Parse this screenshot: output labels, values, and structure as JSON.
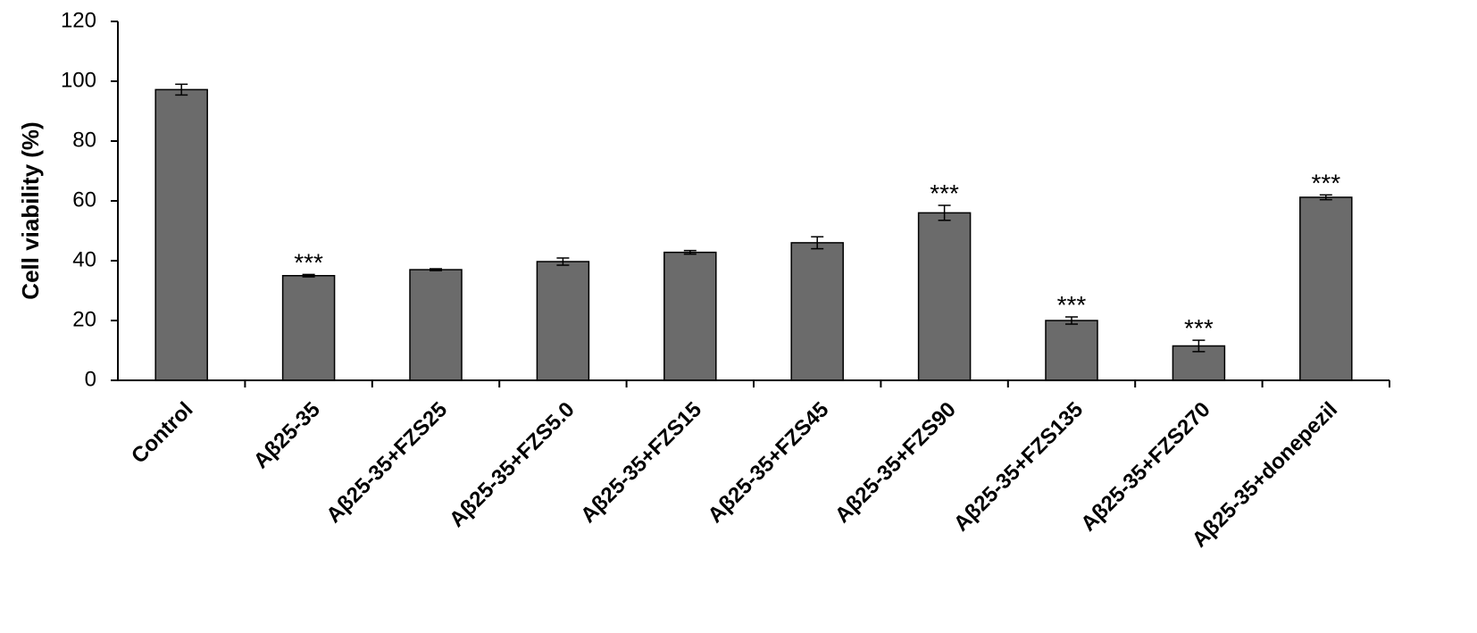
{
  "chart_data": {
    "type": "bar",
    "title": "",
    "xlabel": "",
    "ylabel": "Cell viability (%)",
    "ylim": [
      0,
      120
    ],
    "yticks": [
      0,
      20,
      40,
      60,
      80,
      100,
      120
    ],
    "grid": false,
    "legend": "none",
    "bar_color": "#6b6b6b",
    "categories": [
      "Control",
      "Aβ25-35",
      "Aβ25-35+FZS25",
      "Aβ25-35+FZS5.0",
      "Aβ25-35+FZS15",
      "Aβ25-35+FZS45",
      "Aβ25-35+FZS90",
      "Aβ25-35+FZS135",
      "Aβ25-35+FZS270",
      "Aβ25-35+donepezil"
    ],
    "values": [
      97.2,
      35.0,
      37.0,
      39.7,
      42.8,
      46.0,
      56.0,
      20.0,
      11.5,
      61.2
    ],
    "errors": [
      1.8,
      0.4,
      0.3,
      1.2,
      0.6,
      2.0,
      2.5,
      1.2,
      1.9,
      0.8
    ],
    "annotations": [
      "",
      "***",
      "",
      "",
      "",
      "",
      "***",
      "***",
      "***",
      "***"
    ]
  }
}
